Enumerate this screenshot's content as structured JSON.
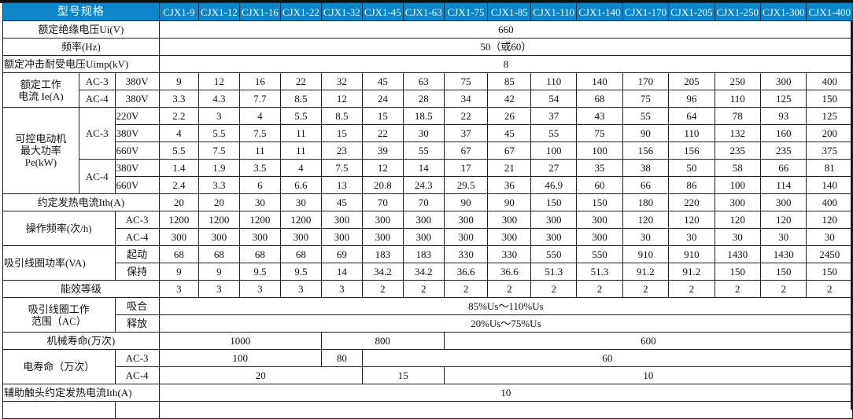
{
  "header": {
    "label": "型号规格",
    "models": [
      "CJX1-9",
      "CJX1-12",
      "CJX1-16",
      "CJX1-22",
      "CJX1-32",
      "CJX1-45",
      "CJX1-63",
      "CJX1-75",
      "CJX1-85",
      "CJX1-110",
      "CJX1-140",
      "CJX1-170",
      "CJX1-205",
      "CJX1-250",
      "CJX1-300",
      "CJX1-400"
    ]
  },
  "colors": {
    "header_bg": "#0a86c9",
    "header_text": "#ffffff",
    "border": "#222222"
  },
  "insulation_voltage": {
    "label": "额定绝缘电压Ui(V)",
    "value": "660"
  },
  "frequency": {
    "label": "频率(Hz)",
    "value": "50（或60）"
  },
  "impulse_voltage": {
    "label": "额定冲击耐受电压Uimp(kV)",
    "value": "8"
  },
  "rated_current": {
    "label": [
      "额定工作",
      "电流 Ie(A)"
    ],
    "rows": [
      {
        "category": "AC-3",
        "voltage": "380V",
        "values": [
          "9",
          "12",
          "16",
          "22",
          "32",
          "45",
          "63",
          "75",
          "85",
          "110",
          "140",
          "170",
          "205",
          "250",
          "300",
          "400"
        ]
      },
      {
        "category": "AC-4",
        "voltage": "380V",
        "values": [
          "3.3",
          "4.3",
          "7.7",
          "8.5",
          "12",
          "24",
          "28",
          "34",
          "42",
          "54",
          "68",
          "75",
          "96",
          "110",
          "125",
          "150"
        ]
      }
    ]
  },
  "motor_power": {
    "label": [
      "可控电动机",
      "最大功率",
      "Pe(kW)"
    ],
    "ac3": {
      "category": "AC-3",
      "rows": [
        {
          "voltage": "220V",
          "values": [
            "2.2",
            "3",
            "4",
            "5.5",
            "8.5",
            "15",
            "18.5",
            "22",
            "26",
            "37",
            "43",
            "55",
            "64",
            "78",
            "93",
            "125"
          ]
        },
        {
          "voltage": "380V",
          "values": [
            "4",
            "5.5",
            "7.5",
            "11",
            "15",
            "22",
            "30",
            "37",
            "45",
            "55",
            "75",
            "90",
            "110",
            "132",
            "160",
            "200"
          ]
        },
        {
          "voltage": "660V",
          "values": [
            "5.5",
            "7.5",
            "11",
            "11",
            "23",
            "39",
            "55",
            "67",
            "67",
            "100",
            "100",
            "156",
            "156",
            "235",
            "235",
            "375"
          ]
        }
      ]
    },
    "ac4": {
      "category": "AC-4",
      "rows": [
        {
          "voltage": "380V",
          "values": [
            "1.4",
            "1.9",
            "3.5",
            "4",
            "7.5",
            "12",
            "14",
            "17",
            "21",
            "27",
            "35",
            "38",
            "50",
            "58",
            "66",
            "81"
          ]
        },
        {
          "voltage": "660V",
          "values": [
            "2.4",
            "3.3",
            "6",
            "6.6",
            "13",
            "20.8",
            "24.3",
            "29.5",
            "36",
            "46.9",
            "60",
            "66",
            "86",
            "100",
            "114",
            "140"
          ]
        }
      ]
    }
  },
  "thermal_current": {
    "label": "约定发热电流Ith(A)",
    "values": [
      "20",
      "20",
      "30",
      "30",
      "45",
      "70",
      "70",
      "90",
      "90",
      "150",
      "150",
      "180",
      "220",
      "300",
      "300",
      "400"
    ]
  },
  "operating_frequency": {
    "label": "操作频率(次/h)",
    "rows": [
      {
        "category": "AC-3",
        "values": [
          "1200",
          "1200",
          "1200",
          "1200",
          "300",
          "300",
          "300",
          "300",
          "300",
          "300",
          "300",
          "120",
          "120",
          "120",
          "120",
          "120"
        ]
      },
      {
        "category": "AC-4",
        "values": [
          "300",
          "300",
          "300",
          "300",
          "300",
          "300",
          "300",
          "300",
          "300",
          "300",
          "300",
          "30",
          "30",
          "30",
          "30",
          "30"
        ]
      }
    ]
  },
  "coil_power": {
    "label": "吸引线圈功率(VA)",
    "rows": [
      {
        "category": "起动",
        "values": [
          "68",
          "68",
          "68",
          "68",
          "69",
          "183",
          "183",
          "330",
          "330",
          "550",
          "550",
          "910",
          "910",
          "1430",
          "1430",
          "2450"
        ]
      },
      {
        "category": "保持",
        "values": [
          "9",
          "9",
          "9.5",
          "9.5",
          "14",
          "34.2",
          "34.2",
          "36.6",
          "36.6",
          "51.3",
          "51.3",
          "91.2",
          "91.2",
          "150",
          "150",
          "150"
        ]
      }
    ]
  },
  "efficiency_class": {
    "label": "能效等级",
    "values": [
      "3",
      "3",
      "3",
      "3",
      "3",
      "2",
      "2",
      "2",
      "2",
      "2",
      "2",
      "2",
      "2",
      "2",
      "2",
      "2"
    ]
  },
  "coil_range": {
    "label": [
      "吸引线圈工作",
      "范围（AC）"
    ],
    "rows": [
      {
        "category": "吸合",
        "value": "85%Us～110%Us"
      },
      {
        "category": "释放",
        "value": "20%Us～75%Us"
      }
    ]
  },
  "mechanical_life": {
    "label": "机械寿命(万次)",
    "values": [
      "1000",
      "800",
      "600"
    ]
  },
  "electrical_life": {
    "label": "电寿命（万次）",
    "rows": [
      {
        "category": "AC-3",
        "values": [
          "100",
          "80",
          "60"
        ]
      },
      {
        "category": "AC-4",
        "values": [
          "20",
          "15",
          "10"
        ]
      }
    ]
  },
  "aux_thermal_current": {
    "label": "辅助触头约定发热电流Ith(A)",
    "value": "10"
  }
}
